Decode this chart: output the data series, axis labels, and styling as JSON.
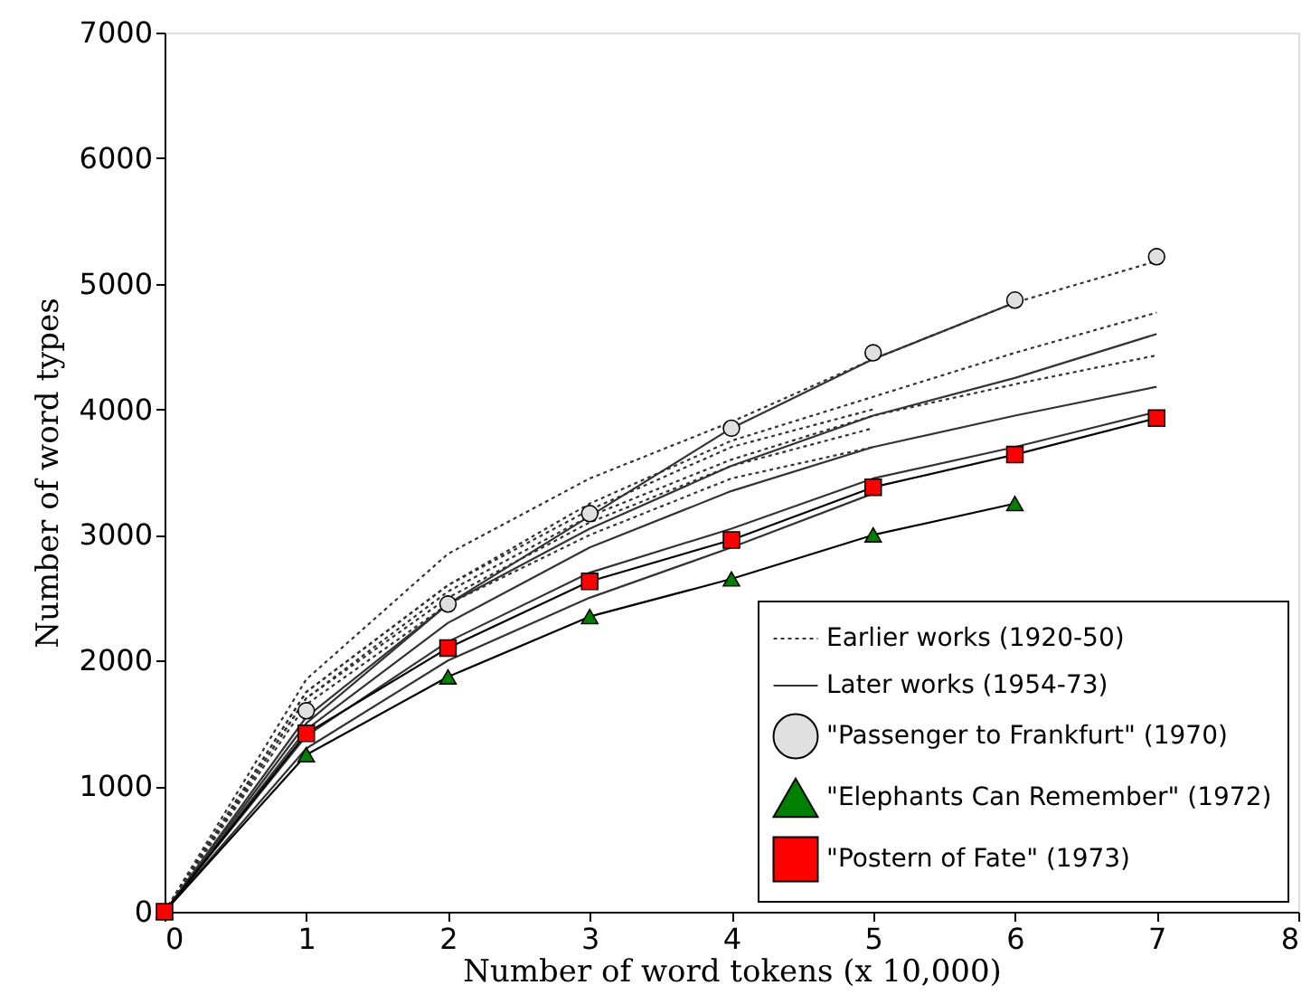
{
  "chart_data": {
    "type": "line",
    "xlabel": "Number of word tokens (x 10,000)",
    "ylabel": "Number of word types",
    "xlim": [
      0,
      8
    ],
    "ylim": [
      0,
      7000
    ],
    "xticks": [
      0,
      1,
      2,
      3,
      4,
      5,
      6,
      7,
      8
    ],
    "yticks": [
      0,
      1000,
      2000,
      3000,
      4000,
      5000,
      6000,
      7000
    ],
    "grid": false,
    "legend": "bottom right",
    "series": [
      {
        "name": "Earlier works (1920-50)",
        "color": "#333333",
        "line_style": "dotted",
        "x": [
          0,
          1,
          2,
          3,
          4,
          5,
          6,
          7
        ],
        "values": [
          0,
          1850,
          2850,
          3450,
          3900,
          4400,
          4850,
          5180
        ]
      },
      {
        "color": "#333333",
        "line_style": "dotted",
        "x": [
          0,
          1,
          2,
          3,
          4,
          5,
          6,
          7
        ],
        "values": [
          0,
          1750,
          2600,
          3250,
          3750,
          4100,
          4450,
          4770
        ]
      },
      {
        "color": "#333333",
        "line_style": "dotted",
        "x": [
          0,
          1,
          2,
          3,
          4,
          5,
          6,
          7
        ],
        "values": [
          0,
          1700,
          2550,
          3150,
          3600,
          3950,
          4200,
          4430
        ]
      },
      {
        "color": "#333333",
        "line_style": "dotted",
        "x": [
          0,
          1,
          2,
          3,
          4,
          5
        ],
        "values": [
          0,
          1750,
          2600,
          3200,
          3700,
          4000
        ]
      },
      {
        "color": "#333333",
        "line_style": "dotted",
        "x": [
          0,
          1,
          2,
          3,
          4,
          5
        ],
        "values": [
          0,
          1700,
          2500,
          3100,
          3550,
          3850
        ]
      },
      {
        "color": "#333333",
        "line_style": "dotted",
        "x": [
          0,
          1,
          2,
          3,
          4,
          5
        ],
        "values": [
          0,
          1650,
          2450,
          3000,
          3450,
          3700
        ]
      },
      {
        "name": "Later works (1954-73)",
        "color": "#333333",
        "line_style": "solid",
        "x": [
          0,
          1,
          2,
          3,
          4,
          5,
          6
        ],
        "values": [
          0,
          1550,
          2450,
          3150,
          3850,
          4400,
          4850
        ]
      },
      {
        "color": "#333333",
        "line_style": "solid",
        "x": [
          0,
          1,
          2,
          3,
          4,
          5,
          6,
          7
        ],
        "values": [
          0,
          1500,
          2450,
          3050,
          3550,
          3950,
          4250,
          4600
        ]
      },
      {
        "color": "#333333",
        "line_style": "solid",
        "x": [
          0,
          1,
          2,
          3,
          4,
          5,
          6,
          7
        ],
        "values": [
          0,
          1450,
          2300,
          2900,
          3350,
          3700,
          3950,
          4180
        ]
      },
      {
        "color": "#333333",
        "line_style": "solid",
        "x": [
          0,
          1,
          2,
          3,
          4,
          5,
          6,
          7
        ],
        "values": [
          0,
          1400,
          2150,
          2700,
          3050,
          3450,
          3700,
          3980
        ]
      },
      {
        "color": "#333333",
        "line_style": "solid",
        "x": [
          0,
          1,
          2,
          3,
          4,
          5
        ],
        "values": [
          0,
          1300,
          2000,
          2500,
          2900,
          3330
        ]
      },
      {
        "name": "\"Passenger to Frankfurt\" (1970)",
        "type": "scatter",
        "marker": "circle",
        "color": "#e0e0e0",
        "x": [
          1,
          2,
          3,
          4,
          5,
          6,
          7
        ],
        "values": [
          1600,
          2450,
          3170,
          3850,
          4450,
          4870,
          5215
        ]
      },
      {
        "name": "\"Elephants Can Remember\" (1972)",
        "marker": "triangle",
        "line_style": "solid",
        "color": "#008000",
        "x": [
          0,
          1,
          2,
          3,
          4,
          5,
          6
        ],
        "values": [
          0,
          1250,
          1870,
          2350,
          2650,
          3000,
          3250
        ]
      },
      {
        "name": "\"Postern of Fate\" (1973)",
        "marker": "square",
        "line_style": "solid",
        "color": "#ff0000",
        "x": [
          0,
          1,
          2,
          3,
          4,
          5,
          6,
          7
        ],
        "values": [
          0,
          1420,
          2100,
          2630,
          2960,
          3380,
          3640,
          3930
        ]
      }
    ]
  }
}
